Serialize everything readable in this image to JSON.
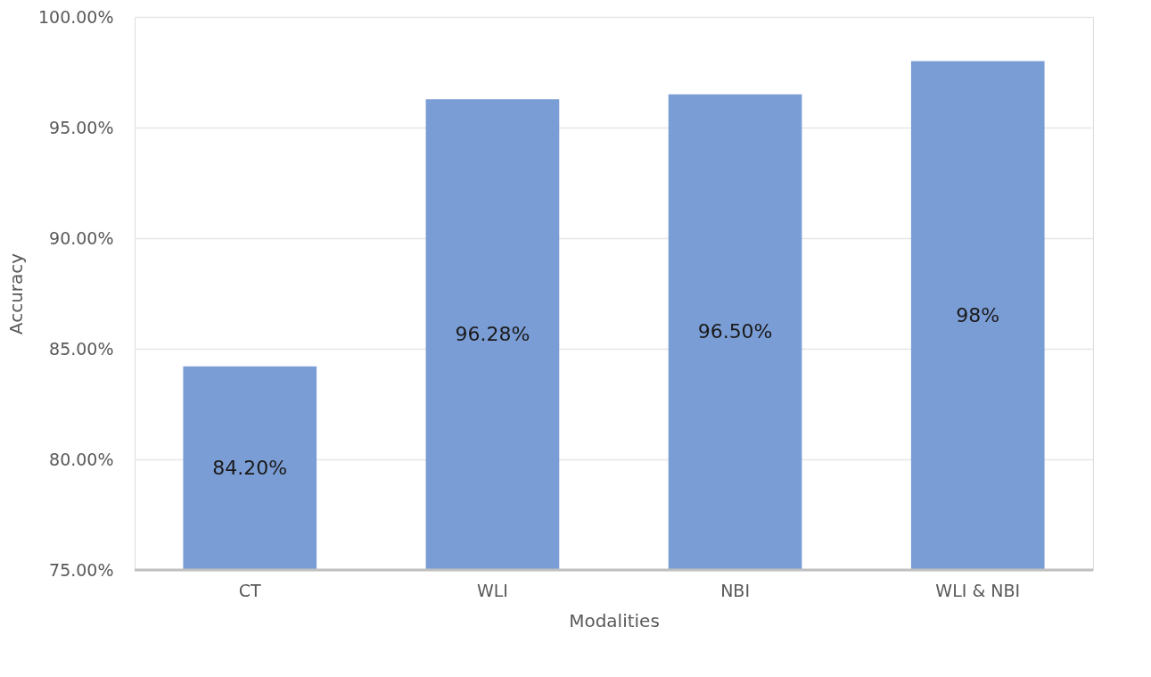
{
  "chart_data": {
    "type": "bar",
    "xlabel": "Modalities",
    "ylabel": "Accuracy",
    "categories": [
      "CT",
      "WLI",
      "NBI",
      "WLI & NBI"
    ],
    "values": [
      84.2,
      96.28,
      96.5,
      98
    ],
    "value_labels": [
      "84.20%",
      "96.28%",
      "96.50%",
      "98%"
    ],
    "color": "#7b9dd5",
    "ylim": [
      75,
      100
    ],
    "yticks": [
      {
        "value": 75,
        "label": "75.00%"
      },
      {
        "value": 80,
        "label": "80.00%"
      },
      {
        "value": 85,
        "label": "85.00%"
      },
      {
        "value": 90,
        "label": "90.00%"
      },
      {
        "value": 95,
        "label": "95.00%"
      },
      {
        "value": 100,
        "label": "100.00%"
      }
    ],
    "grid": "y"
  }
}
